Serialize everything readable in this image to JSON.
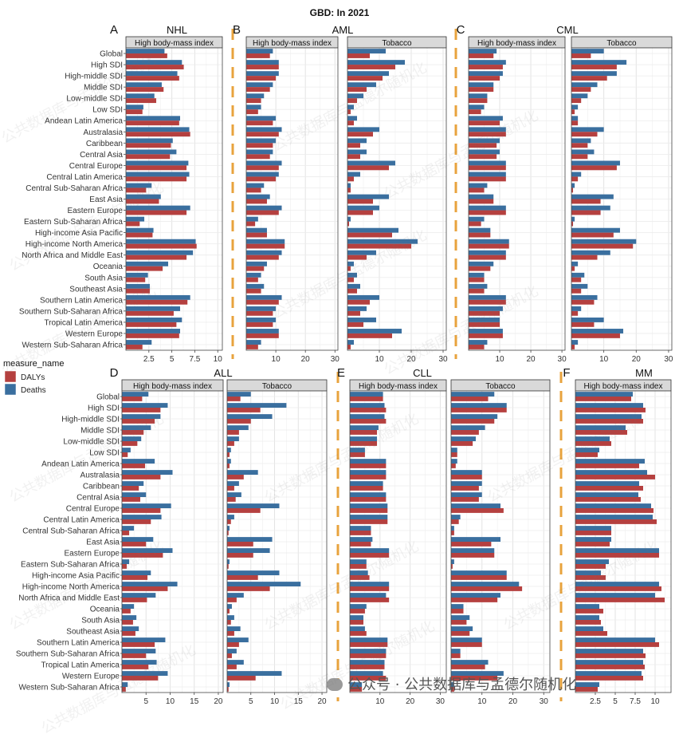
{
  "title": "GBD: In 2021",
  "legend": {
    "title": "measure_name",
    "items": [
      {
        "label": "DALYs",
        "color": "#b5403f"
      },
      {
        "label": "Deaths",
        "color": "#3a6f9f"
      }
    ]
  },
  "regions": [
    "Global",
    "High SDI",
    "High-middle SDI",
    "Middle SDI",
    "Low-middle SDI",
    "Low SDI",
    "Andean Latin America",
    "Australasia",
    "Caribbean",
    "Central Asia",
    "Central Europe",
    "Central Latin America",
    "Central Sub-Saharan Africa",
    "East Asia",
    "Eastern Europe",
    "Eastern Sub-Saharan Africa",
    "High-income Asia Pacific",
    "High-income North America",
    "North Africa and Middle East",
    "Oceania",
    "South Asia",
    "Southeast Asia",
    "Southern Latin America",
    "Southern Sub-Saharan Africa",
    "Tropical Latin America",
    "Western Europe",
    "Western Sub-Saharan Africa"
  ],
  "watermark": "公共数据库与孟德尔随机化",
  "footer": "公众号 · 公共数据库与孟德尔随机化",
  "chart_data": [
    {
      "panel_letter": "A",
      "disease": "NHL",
      "type": "bar",
      "orientation": "horizontal",
      "facets": [
        {
          "strip": "High body-mass index",
          "xlim": [
            0,
            10.5
          ],
          "ticks": [
            2.5,
            5,
            7.5,
            10
          ],
          "series": [
            {
              "name": "Deaths",
              "values": [
                4.2,
                6.1,
                5.6,
                3.9,
                3.1,
                1.9,
                5.9,
                6.9,
                5.1,
                5.5,
                6.8,
                6.9,
                2.8,
                3.8,
                7.0,
                2.0,
                3.0,
                7.6,
                7.3,
                4.6,
                2.4,
                2.6,
                7.0,
                5.9,
                6.1,
                5.9,
                2.8
              ]
            },
            {
              "name": "DALYs",
              "values": [
                4.5,
                6.3,
                5.8,
                4.1,
                3.3,
                1.8,
                5.8,
                7.0,
                4.9,
                4.8,
                6.6,
                6.6,
                2.2,
                3.6,
                6.6,
                1.5,
                2.9,
                7.7,
                6.6,
                4.0,
                2.1,
                2.6,
                6.7,
                5.2,
                5.5,
                5.8,
                1.8
              ]
            }
          ]
        }
      ]
    },
    {
      "panel_letter": "B",
      "disease": "AML",
      "type": "bar",
      "orientation": "horizontal",
      "facets": [
        {
          "strip": "High body-mass index",
          "xlim": [
            0,
            31
          ],
          "ticks": [
            10,
            20,
            30
          ],
          "series": [
            {
              "name": "Deaths",
              "values": [
                9,
                11,
                11,
                9,
                6,
                5,
                10,
                12,
                10,
                9,
                12,
                11,
                6,
                8,
                12,
                4,
                7,
                13,
                12,
                7,
                5,
                6,
                12,
                10,
                10,
                11,
                5
              ]
            },
            {
              "name": "DALYs",
              "values": [
                8,
                11,
                10,
                8,
                5,
                4,
                9,
                11,
                9,
                8,
                11,
                10,
                5,
                7,
                11,
                3,
                7,
                13,
                11,
                6,
                4,
                5,
                11,
                9,
                9,
                11,
                4
              ]
            }
          ]
        },
        {
          "strip": "Tobacco",
          "xlim": [
            0,
            31
          ],
          "ticks": [
            10,
            20,
            30
          ],
          "series": [
            {
              "name": "Deaths",
              "values": [
                12,
                18,
                13,
                9,
                5,
                2,
                3,
                10,
                6,
                6,
                15,
                4,
                1,
                13,
                10,
                1,
                16,
                22,
                9,
                2,
                3,
                4,
                10,
                6,
                9,
                17,
                2
              ]
            },
            {
              "name": "DALYs",
              "values": [
                7,
                15,
                11,
                6,
                3,
                1,
                2,
                8,
                4,
                4,
                13,
                2,
                1,
                8,
                8,
                0.5,
                14,
                20,
                6,
                1,
                2,
                3,
                7,
                4,
                5,
                14,
                1
              ]
            }
          ]
        }
      ]
    },
    {
      "panel_letter": "C",
      "disease": "CML",
      "type": "bar",
      "orientation": "horizontal",
      "facets": [
        {
          "strip": "High body-mass index",
          "xlim": [
            0,
            31
          ],
          "ticks": [
            10,
            20,
            30
          ],
          "series": [
            {
              "name": "Deaths",
              "values": [
                9,
                12,
                11,
                8,
                6,
                5,
                11,
                12,
                10,
                10,
                12,
                12,
                6,
                8,
                12,
                5,
                7,
                13,
                12,
                8,
                5,
                6,
                12,
                11,
                10,
                11,
                6
              ]
            },
            {
              "name": "DALYs",
              "values": [
                8,
                11,
                10,
                8,
                6,
                4,
                10,
                12,
                9,
                9,
                12,
                12,
                5,
                8,
                12,
                4,
                7,
                13,
                12,
                7,
                5,
                5,
                12,
                10,
                10,
                11,
                5
              ]
            }
          ]
        },
        {
          "strip": "Tobacco",
          "xlim": [
            0,
            31
          ],
          "ticks": [
            10,
            20,
            30
          ],
          "series": [
            {
              "name": "Deaths",
              "values": [
                10,
                17,
                14,
                8,
                5,
                2,
                2,
                10,
                6,
                7,
                15,
                3,
                1,
                13,
                12,
                1,
                15,
                20,
                12,
                2,
                4,
                5,
                8,
                3,
                10,
                16,
                2
              ]
            },
            {
              "name": "DALYs",
              "values": [
                6,
                14,
                11,
                6,
                3,
                1,
                2,
                8,
                5,
                5,
                14,
                2,
                0.5,
                9,
                9,
                0.5,
                13,
                19,
                8,
                1,
                3,
                3,
                7,
                2,
                7,
                15,
                1
              ]
            }
          ]
        }
      ]
    },
    {
      "panel_letter": "D",
      "disease": "ALL",
      "type": "bar",
      "orientation": "horizontal",
      "facets": [
        {
          "strip": "High body-mass index",
          "xlim": [
            0,
            21
          ],
          "ticks": [
            5,
            10,
            15,
            20
          ],
          "series": [
            {
              "name": "Deaths",
              "values": [
                5.5,
                9.5,
                8.0,
                6.0,
                4.0,
                1.8,
                6.8,
                10.5,
                4.5,
                5.0,
                10.2,
                8.2,
                2.5,
                6.5,
                10.5,
                1.5,
                6.0,
                11.5,
                7.0,
                2.5,
                3.0,
                3.5,
                9.0,
                7.0,
                7.2,
                9.5,
                1.2
              ]
            },
            {
              "name": "DALYs",
              "values": [
                4.2,
                8.0,
                6.8,
                4.5,
                3.2,
                1.2,
                4.8,
                8.0,
                3.5,
                3.8,
                8.0,
                6.0,
                1.5,
                5.0,
                8.5,
                1.0,
                5.3,
                9.5,
                5.2,
                1.8,
                2.3,
                2.8,
                6.8,
                5.0,
                5.5,
                7.5,
                0.8
              ]
            }
          ]
        },
        {
          "strip": "Tobacco",
          "xlim": [
            0,
            21
          ],
          "ticks": [
            5,
            10,
            15,
            20
          ],
          "series": [
            {
              "name": "Deaths",
              "values": [
                5.0,
                12.5,
                9.5,
                4.5,
                2.5,
                0.8,
                0.8,
                6.5,
                2.5,
                3.0,
                11.0,
                1.5,
                0.5,
                9.5,
                9.0,
                0.5,
                11.0,
                15.5,
                3.5,
                1.0,
                1.5,
                2.8,
                4.5,
                2.0,
                3.5,
                11.5,
                0.5
              ]
            },
            {
              "name": "DALYs",
              "values": [
                2.8,
                7.0,
                5.0,
                2.5,
                1.5,
                0.5,
                0.5,
                3.5,
                1.5,
                1.8,
                7.0,
                0.8,
                0.3,
                5.5,
                5.5,
                0.3,
                6.5,
                9.0,
                2.0,
                0.5,
                0.8,
                1.5,
                2.5,
                1.0,
                2.0,
                6.0,
                0.3
              ]
            }
          ]
        }
      ]
    },
    {
      "panel_letter": "E",
      "disease": "CLL",
      "type": "bar",
      "orientation": "horizontal",
      "facets": [
        {
          "strip": "High body-mass index",
          "xlim": [
            0,
            32
          ],
          "ticks": [
            10,
            20,
            30
          ],
          "series": [
            {
              "name": "Deaths",
              "values": [
                11,
                11.5,
                11.5,
                9.5,
                9,
                5,
                12,
                12,
                11,
                12,
                12.5,
                12.5,
                7,
                7.5,
                13,
                5.5,
                6,
                13,
                12,
                5.5,
                4.5,
                5,
                12.5,
                12,
                11.5,
                11,
                4
              ]
            },
            {
              "name": "DALYs",
              "values": [
                11,
                12,
                12,
                9,
                9,
                5,
                12,
                12,
                11,
                12,
                12.5,
                12.5,
                7,
                7,
                13,
                5.5,
                6.5,
                13,
                13,
                5,
                4.5,
                5.5,
                12.5,
                12,
                11.5,
                12,
                4
              ]
            }
          ]
        },
        {
          "strip": "Tobacco",
          "xlim": [
            0,
            32
          ],
          "ticks": [
            10,
            20,
            30
          ],
          "series": [
            {
              "name": "Deaths",
              "values": [
                14,
                18,
                15,
                11,
                8,
                2,
                2,
                10,
                10,
                10,
                16,
                3,
                1,
                16,
                14,
                1,
                18,
                22,
                16,
                4,
                6,
                7,
                10,
                3,
                12,
                17,
                1
              ]
            },
            {
              "name": "DALYs",
              "values": [
                12,
                18,
                14,
                9,
                7,
                2,
                1.5,
                10,
                9,
                9,
                17,
                2.5,
                1,
                13,
                14,
                0.5,
                18,
                23,
                15,
                4,
                5,
                6,
                10,
                3,
                11,
                15,
                1
              ]
            }
          ]
        }
      ]
    },
    {
      "panel_letter": "F",
      "disease": "MM",
      "type": "bar",
      "orientation": "horizontal",
      "facets": [
        {
          "strip": "High body-mass index",
          "xlim": [
            0,
            12
          ],
          "ticks": [
            2.5,
            5,
            7.5,
            10
          ],
          "series": [
            {
              "name": "Deaths",
              "values": [
                7.2,
                8.5,
                8.3,
                6.3,
                4.3,
                3.0,
                8.7,
                9.0,
                8.0,
                7.9,
                9.5,
                9.7,
                4.5,
                4.5,
                10.5,
                4.2,
                3.2,
                10.5,
                10.0,
                3.0,
                3.0,
                3.5,
                10.0,
                8.5,
                8.5,
                8.3,
                3.0
              ]
            },
            {
              "name": "DALYs",
              "values": [
                7.0,
                8.8,
                8.5,
                6.5,
                4.5,
                2.8,
                8.0,
                10.0,
                8.5,
                8.2,
                9.8,
                10.2,
                4.5,
                4.3,
                10.5,
                3.8,
                3.8,
                10.8,
                11.2,
                3.5,
                3.2,
                4.0,
                10.5,
                8.8,
                8.7,
                8.5,
                2.8
              ]
            }
          ]
        }
      ]
    }
  ]
}
